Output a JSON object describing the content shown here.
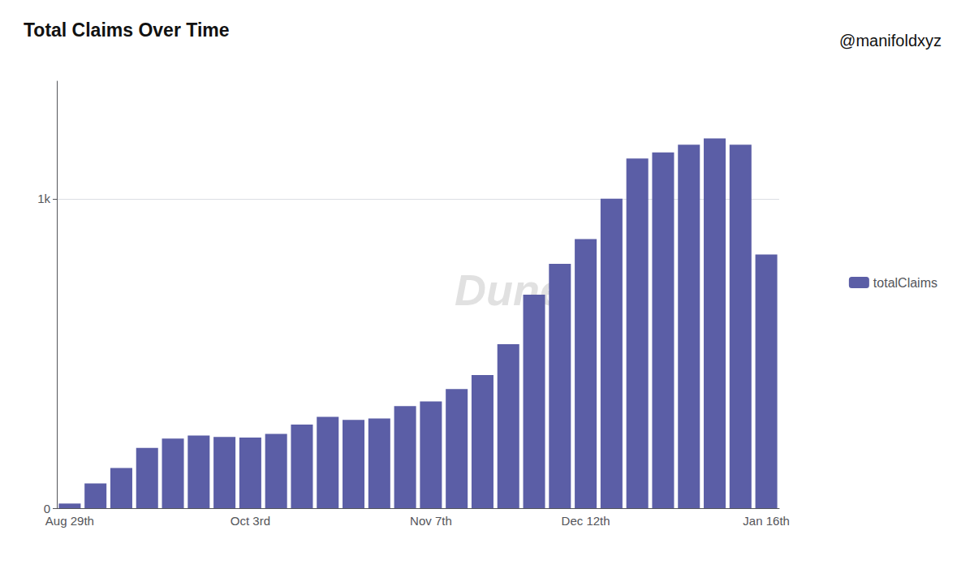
{
  "chart_data": {
    "type": "bar",
    "title": "Total Claims Over Time",
    "categories": [
      "Aug 29th",
      null,
      null,
      null,
      null,
      null,
      null,
      "Oct 3rd",
      null,
      null,
      null,
      null,
      null,
      null,
      "Nov 7th",
      null,
      null,
      null,
      null,
      null,
      "Dec 12th",
      null,
      null,
      null,
      null,
      null,
      null,
      "Jan 16th"
    ],
    "series": [
      {
        "name": "totalClaims",
        "color": "#5B5EA6",
        "values": [
          15,
          80,
          130,
          195,
          225,
          235,
          230,
          228,
          240,
          270,
          295,
          285,
          290,
          330,
          345,
          385,
          430,
          530,
          690,
          790,
          870,
          1000,
          1130,
          1150,
          1175,
          1195,
          1175,
          820
        ]
      }
    ],
    "ylim": [
      0,
      1380
    ],
    "yticks": [
      0,
      {
        "value": 1000,
        "label": "1k"
      }
    ],
    "grid": true,
    "legend": "right",
    "annotations": [
      "Dune",
      "@manifoldxyz"
    ]
  }
}
